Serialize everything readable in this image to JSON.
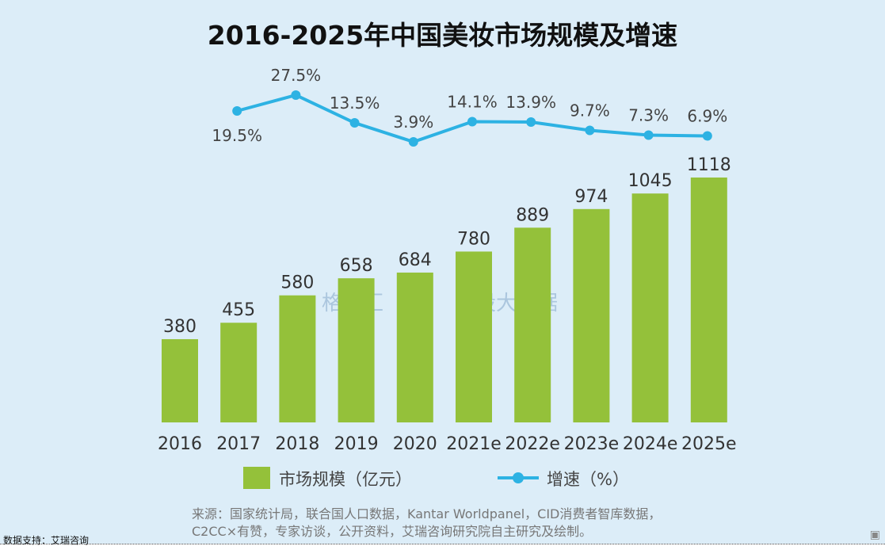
{
  "chart_data": {
    "type": "bar+line",
    "title": "2016-2025年中国美妆市场规模及增速",
    "categories": [
      "2016",
      "2017",
      "2018",
      "2019",
      "2020",
      "2021e",
      "2022e",
      "2023e",
      "2024e",
      "2025e"
    ],
    "series": [
      {
        "name": "市场规模（亿元）",
        "type": "bar",
        "color": "#94c13a",
        "values": [
          380,
          455,
          580,
          658,
          684,
          780,
          889,
          974,
          1045,
          1118
        ]
      },
      {
        "name": "增速（%）",
        "type": "line",
        "color": "#2db2e3",
        "values": [
          null,
          19.5,
          27.5,
          13.5,
          3.9,
          14.1,
          13.9,
          9.7,
          7.3,
          6.9
        ]
      }
    ],
    "growth_labels": [
      "",
      "19.5%",
      "27.5%",
      "13.5%",
      "3.9%",
      "14.1%",
      "13.9%",
      "9.7%",
      "7.3%",
      "6.9%"
    ],
    "legend": {
      "bar": "市场规模（亿元）",
      "line": "增速（%）",
      "placement": "bottom"
    },
    "grid": false
  },
  "source": {
    "line1": "来源：国家统计局，联合国人口数据，Kantar Worldpanel，CID消费者智库数据，",
    "line2": "C2CC×有赞，专家访谈，公开资料，艾瑞咨询研究院自主研究及绘制。"
  },
  "support": "数据支持：艾瑞咨询",
  "watermark": {
    "brand": "格隆汇",
    "brand_url": "www.gelonghui.com",
    "brand2": "勾股大数据",
    "brand2_url": "www.gogudata.com"
  },
  "logo": "格隆汇"
}
